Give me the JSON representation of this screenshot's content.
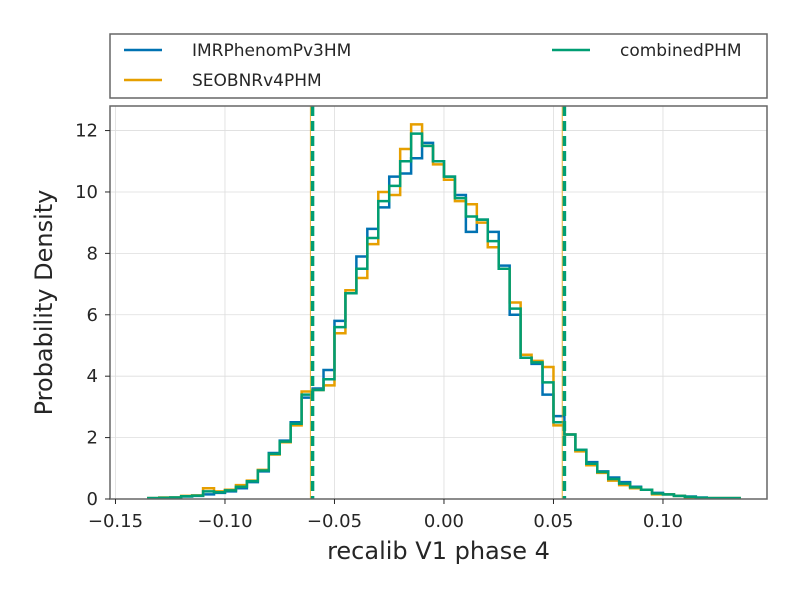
{
  "chart_data": {
    "type": "histogram-step",
    "xlabel": "recalib V1 phase 4",
    "ylabel": "Probability Density",
    "xlim": [
      -0.1525,
      0.1475
    ],
    "ylim": [
      0,
      12.8
    ],
    "xticks": [
      -0.15,
      -0.1,
      -0.05,
      0.0,
      0.05,
      0.1
    ],
    "xtick_labels": [
      "−0.15",
      "−0.10",
      "−0.05",
      "0.00",
      "0.05",
      "0.10"
    ],
    "yticks": [
      0,
      2,
      4,
      6,
      8,
      10,
      12
    ],
    "ytick_labels": [
      "0",
      "2",
      "4",
      "6",
      "8",
      "10",
      "12"
    ],
    "grid": true,
    "legend_placement": "top-outside",
    "series": [
      {
        "name": "IMRPhenomPv3HM",
        "color": "#0072B2",
        "bin_edges": [
          -0.135,
          -0.13,
          -0.125,
          -0.12,
          -0.115,
          -0.11,
          -0.105,
          -0.1,
          -0.095,
          -0.09,
          -0.085,
          -0.08,
          -0.075,
          -0.07,
          -0.065,
          -0.06,
          -0.055,
          -0.05,
          -0.045,
          -0.04,
          -0.035,
          -0.03,
          -0.025,
          -0.02,
          -0.015,
          -0.01,
          -0.005,
          0.0,
          0.005,
          0.01,
          0.015,
          0.02,
          0.025,
          0.03,
          0.035,
          0.04,
          0.045,
          0.05,
          0.055,
          0.06,
          0.065,
          0.07,
          0.075,
          0.08,
          0.085,
          0.09,
          0.095,
          0.1,
          0.105,
          0.11,
          0.115,
          0.12,
          0.125,
          0.13,
          0.135
        ],
        "densities": [
          0.03,
          0.03,
          0.05,
          0.08,
          0.1,
          0.15,
          0.2,
          0.25,
          0.35,
          0.55,
          0.9,
          1.5,
          1.9,
          2.5,
          3.3,
          3.6,
          4.2,
          5.8,
          6.7,
          7.9,
          8.8,
          9.5,
          10.5,
          10.6,
          11.1,
          11.6,
          11.0,
          10.5,
          9.9,
          8.7,
          9.1,
          8.7,
          7.6,
          6.0,
          4.6,
          4.4,
          3.4,
          2.7,
          2.1,
          1.6,
          1.2,
          0.9,
          0.7,
          0.55,
          0.4,
          0.3,
          0.2,
          0.15,
          0.1,
          0.08,
          0.05,
          0.03,
          0.03,
          0.03
        ]
      },
      {
        "name": "SEOBNRv4PHM",
        "color": "#E69F00",
        "bin_edges": [
          -0.135,
          -0.13,
          -0.125,
          -0.12,
          -0.115,
          -0.11,
          -0.105,
          -0.1,
          -0.095,
          -0.09,
          -0.085,
          -0.08,
          -0.075,
          -0.07,
          -0.065,
          -0.06,
          -0.055,
          -0.05,
          -0.045,
          -0.04,
          -0.035,
          -0.03,
          -0.025,
          -0.02,
          -0.015,
          -0.01,
          -0.005,
          0.0,
          0.005,
          0.01,
          0.015,
          0.02,
          0.025,
          0.03,
          0.035,
          0.04,
          0.045,
          0.05,
          0.055,
          0.06,
          0.065,
          0.07,
          0.075,
          0.08,
          0.085,
          0.09,
          0.095,
          0.1,
          0.105,
          0.11,
          0.115,
          0.12,
          0.125,
          0.13,
          0.135
        ],
        "densities": [
          0.03,
          0.05,
          0.05,
          0.1,
          0.12,
          0.35,
          0.25,
          0.3,
          0.45,
          0.6,
          0.95,
          1.45,
          1.85,
          2.4,
          3.5,
          3.55,
          3.7,
          5.4,
          6.8,
          7.2,
          8.3,
          10.0,
          9.9,
          11.4,
          12.2,
          11.5,
          10.9,
          10.4,
          9.7,
          9.6,
          9.0,
          8.2,
          7.5,
          6.4,
          4.7,
          4.5,
          4.3,
          2.4,
          2.1,
          1.55,
          1.1,
          0.85,
          0.6,
          0.45,
          0.35,
          0.3,
          0.15,
          0.15,
          0.1,
          0.05,
          0.03,
          0.03,
          0.03,
          0.03
        ]
      },
      {
        "name": "combinedPHM",
        "color": "#009E73",
        "bin_edges": [
          -0.135,
          -0.13,
          -0.125,
          -0.12,
          -0.115,
          -0.11,
          -0.105,
          -0.1,
          -0.095,
          -0.09,
          -0.085,
          -0.08,
          -0.075,
          -0.07,
          -0.065,
          -0.06,
          -0.055,
          -0.05,
          -0.045,
          -0.04,
          -0.035,
          -0.03,
          -0.025,
          -0.02,
          -0.015,
          -0.01,
          -0.005,
          0.0,
          0.005,
          0.01,
          0.015,
          0.02,
          0.025,
          0.03,
          0.035,
          0.04,
          0.045,
          0.05,
          0.055,
          0.06,
          0.065,
          0.07,
          0.075,
          0.08,
          0.085,
          0.09,
          0.095,
          0.1,
          0.105,
          0.11,
          0.115,
          0.12,
          0.125,
          0.13,
          0.135
        ],
        "densities": [
          0.03,
          0.04,
          0.05,
          0.09,
          0.11,
          0.25,
          0.22,
          0.28,
          0.4,
          0.58,
          0.93,
          1.47,
          1.87,
          2.45,
          3.4,
          3.55,
          3.9,
          5.6,
          6.7,
          7.5,
          8.5,
          9.7,
          10.2,
          11.0,
          11.9,
          11.5,
          11.0,
          10.5,
          9.8,
          9.2,
          9.1,
          8.4,
          7.5,
          6.2,
          4.6,
          4.45,
          3.8,
          2.5,
          2.1,
          1.6,
          1.15,
          0.88,
          0.65,
          0.5,
          0.38,
          0.3,
          0.18,
          0.15,
          0.1,
          0.07,
          0.04,
          0.03,
          0.03,
          0.03
        ]
      }
    ],
    "vlines": [
      {
        "x": -0.06,
        "color": "#009E73",
        "style": "dashed"
      },
      {
        "x": 0.055,
        "color": "#009E73",
        "style": "dashed"
      }
    ],
    "faint_vlines": [
      {
        "x": -0.061,
        "color": "#E69F00"
      },
      {
        "x": 0.054,
        "color": "#E69F00"
      }
    ]
  }
}
